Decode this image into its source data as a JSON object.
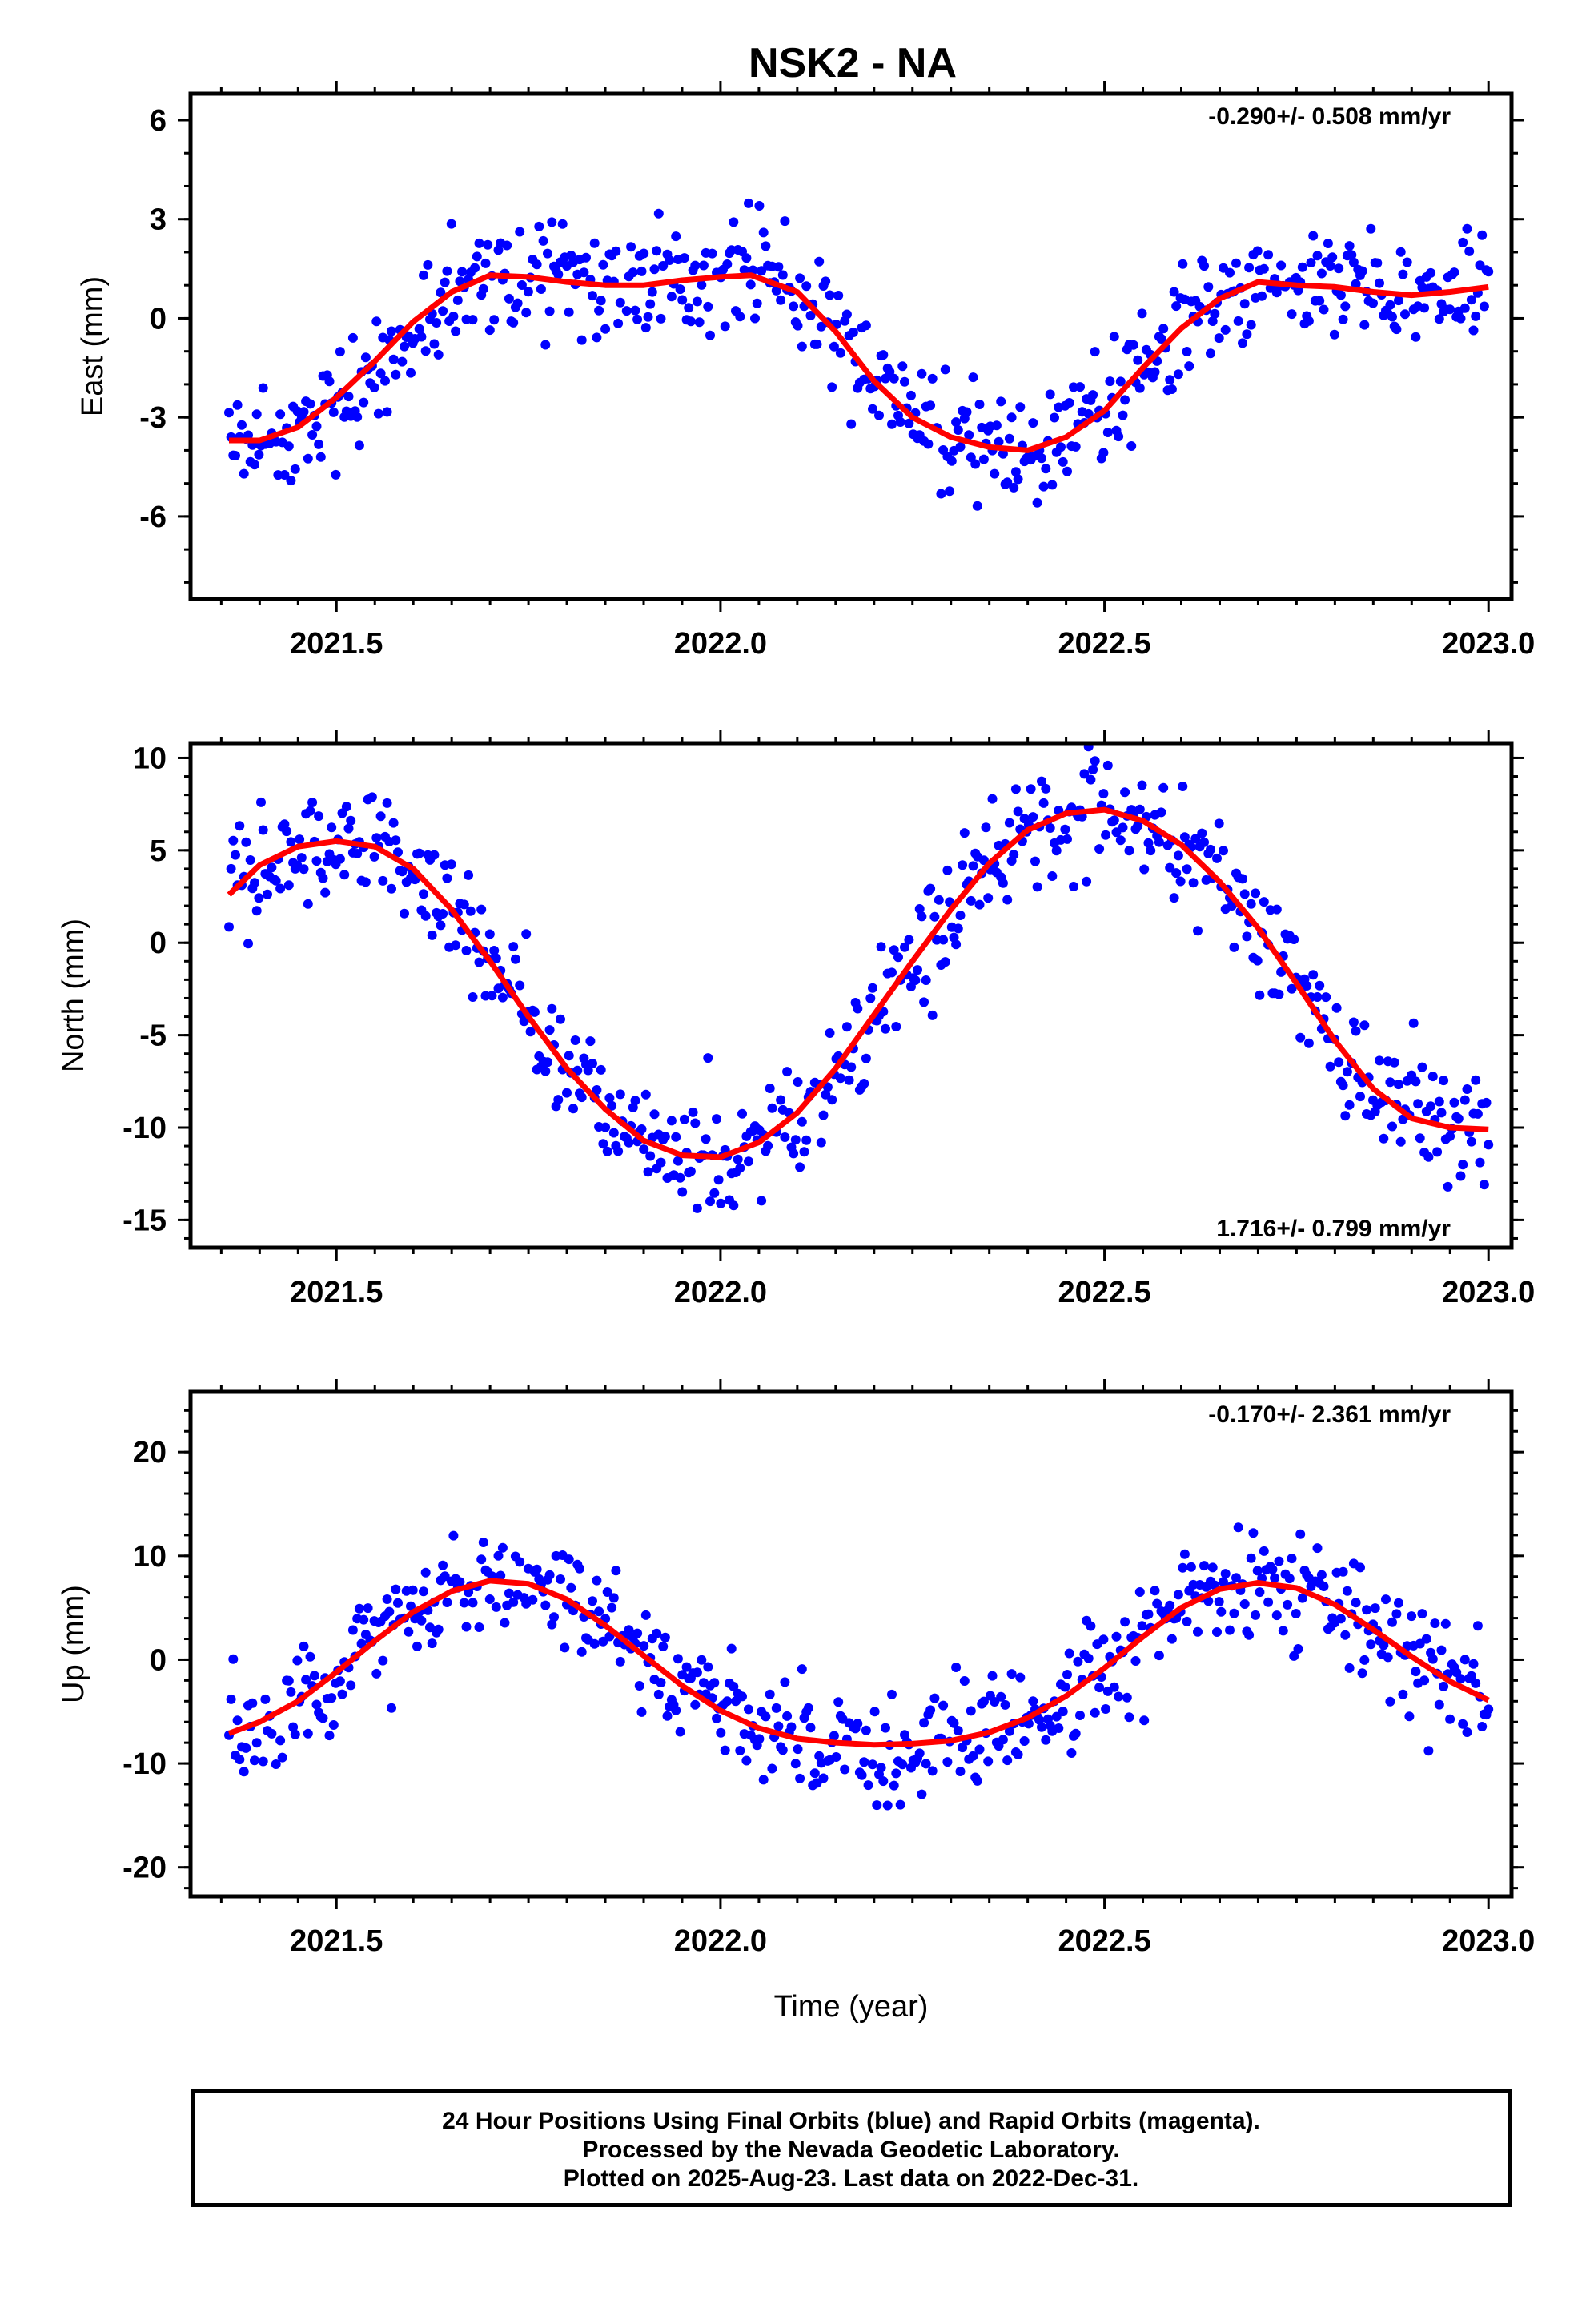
{
  "colors": {
    "final_orbits": "#0000ff",
    "fit": "#ff0000",
    "axes": "#000000",
    "background": "#ffffff"
  },
  "footer": {
    "line1": "24 Hour Positions Using Final Orbits (blue) and Rapid Orbits (magenta).",
    "line2": "Processed by the Nevada Geodetic Laboratory.",
    "line3": "Plotted on 2025-Aug-23. Last data on 2022-Dec-31."
  },
  "chart_data": [
    {
      "type": "scatter",
      "title": "NSK2 - NA",
      "ylabel": "East (mm)",
      "xlabel": "",
      "xlim": [
        2021.31,
        2023.03
      ],
      "ylim": [
        -8.5,
        6.8
      ],
      "xticks": [
        "2021.5",
        "2022.0",
        "2022.5",
        "2023.0"
      ],
      "yticks": [
        "6",
        "3",
        "0",
        "-3",
        "-6"
      ],
      "rate_text": "-0.290+/- 0.508 mm/yr",
      "rate_position": "top-right",
      "grid": false,
      "fit_series": {
        "name": "",
        "x": [
          2021.36,
          2021.4,
          2021.45,
          2021.5,
          2021.55,
          2021.6,
          2021.65,
          2021.7,
          2021.75,
          2021.8,
          2021.85,
          2021.9,
          2021.95,
          2022.0,
          2022.04,
          2022.1,
          2022.15,
          2022.2,
          2022.25,
          2022.3,
          2022.35,
          2022.4,
          2022.45,
          2022.5,
          2022.55,
          2022.6,
          2022.65,
          2022.7,
          2022.75,
          2022.8,
          2022.85,
          2022.9,
          2022.95,
          2023.0
        ],
        "y": [
          -3.7,
          -3.7,
          -3.3,
          -2.4,
          -1.3,
          -0.1,
          0.8,
          1.3,
          1.25,
          1.1,
          1.0,
          1.0,
          1.15,
          1.25,
          1.3,
          0.8,
          -0.4,
          -1.9,
          -3.0,
          -3.6,
          -3.9,
          -4.0,
          -3.6,
          -2.8,
          -1.5,
          -0.3,
          0.6,
          1.1,
          1.0,
          0.95,
          0.8,
          0.7,
          0.8,
          0.95
        ]
      },
      "series": [
        {
          "name": "",
          "seed": 11
        }
      ]
    },
    {
      "type": "scatter",
      "title": "",
      "ylabel": "North (mm)",
      "xlabel": "",
      "xlim": [
        2021.31,
        2023.03
      ],
      "ylim": [
        -16.5,
        10.8
      ],
      "xticks": [
        "2021.5",
        "2022.0",
        "2022.5",
        "2023.0"
      ],
      "yticks": [
        "10",
        "5",
        "0",
        "-5",
        "-10",
        "-15"
      ],
      "rate_text": "1.716+/- 0.799 mm/yr",
      "rate_position": "bottom-right",
      "grid": false,
      "fit_series": {
        "name": "",
        "x": [
          2021.36,
          2021.4,
          2021.45,
          2021.5,
          2021.55,
          2021.6,
          2021.65,
          2021.7,
          2021.75,
          2021.8,
          2021.85,
          2021.9,
          2021.95,
          2022.0,
          2022.05,
          2022.1,
          2022.15,
          2022.2,
          2022.25,
          2022.3,
          2022.35,
          2022.4,
          2022.45,
          2022.5,
          2022.55,
          2022.6,
          2022.65,
          2022.7,
          2022.75,
          2022.8,
          2022.85,
          2022.9,
          2022.95,
          2023.0
        ],
        "y": [
          2.6,
          4.2,
          5.2,
          5.5,
          5.2,
          4.0,
          1.8,
          -1.0,
          -4.0,
          -6.8,
          -9.0,
          -10.7,
          -11.5,
          -11.6,
          -10.8,
          -9.2,
          -6.8,
          -3.9,
          -1.0,
          1.8,
          4.3,
          6.1,
          7.0,
          7.2,
          6.6,
          5.3,
          3.3,
          0.8,
          -2.2,
          -5.3,
          -7.9,
          -9.5,
          -10.0,
          -10.1
        ]
      },
      "series": [
        {
          "name": "",
          "seed": 23
        }
      ]
    },
    {
      "type": "scatter",
      "title": "",
      "ylabel": "Up (mm)",
      "xlabel": "Time (year)",
      "xlim": [
        2021.31,
        2023.03
      ],
      "ylim": [
        -22.8,
        25.8
      ],
      "xticks": [
        "2021.5",
        "2022.0",
        "2022.5",
        "2023.0"
      ],
      "yticks": [
        "20",
        "10",
        "0",
        "-10",
        "-20"
      ],
      "rate_text": "-0.170+/- 2.361 mm/yr",
      "rate_position": "top-right",
      "grid": false,
      "fit_series": {
        "name": "",
        "x": [
          2021.36,
          2021.4,
          2021.45,
          2021.5,
          2021.55,
          2021.6,
          2021.65,
          2021.7,
          2021.75,
          2021.8,
          2021.85,
          2021.9,
          2021.95,
          2022.0,
          2022.05,
          2022.1,
          2022.15,
          2022.2,
          2022.25,
          2022.3,
          2022.35,
          2022.4,
          2022.45,
          2022.5,
          2022.55,
          2022.6,
          2022.65,
          2022.7,
          2022.75,
          2022.8,
          2022.85,
          2022.9,
          2022.95,
          2023.0
        ],
        "y": [
          -7.1,
          -6.0,
          -4.0,
          -1.2,
          1.8,
          4.6,
          6.6,
          7.6,
          7.3,
          5.8,
          3.3,
          0.4,
          -2.5,
          -4.9,
          -6.6,
          -7.6,
          -8.0,
          -8.2,
          -8.1,
          -7.8,
          -7.0,
          -5.6,
          -3.5,
          -0.8,
          2.2,
          5.0,
          6.8,
          7.4,
          6.9,
          5.3,
          2.9,
          0.3,
          -2.1,
          -3.9
        ]
      },
      "series": [
        {
          "name": "",
          "seed": 37
        }
      ]
    }
  ]
}
